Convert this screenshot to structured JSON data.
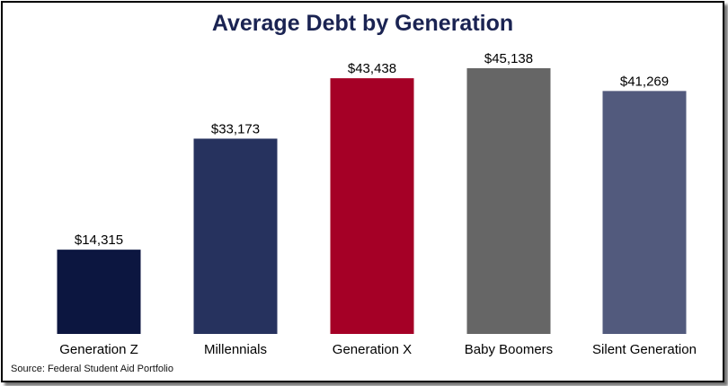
{
  "chart_data": {
    "type": "bar",
    "title": "Average Debt by Generation",
    "categories": [
      "Generation Z",
      "Millennials",
      "Generation X",
      "Baby Boomers",
      "Silent Generation"
    ],
    "values": [
      14315,
      33173,
      43438,
      45138,
      41269
    ],
    "value_labels": [
      "$14,315",
      "$33,173",
      "$43,438",
      "$45,138",
      "$41,269"
    ],
    "colors": [
      "#0c1640",
      "#26325e",
      "#a50026",
      "#666666",
      "#525a7d"
    ],
    "ylim": [
      0,
      45138
    ],
    "xlabel": "",
    "ylabel": "",
    "grid": false,
    "legend": "none",
    "source": "Source: Federal Student Aid Portfolio"
  }
}
